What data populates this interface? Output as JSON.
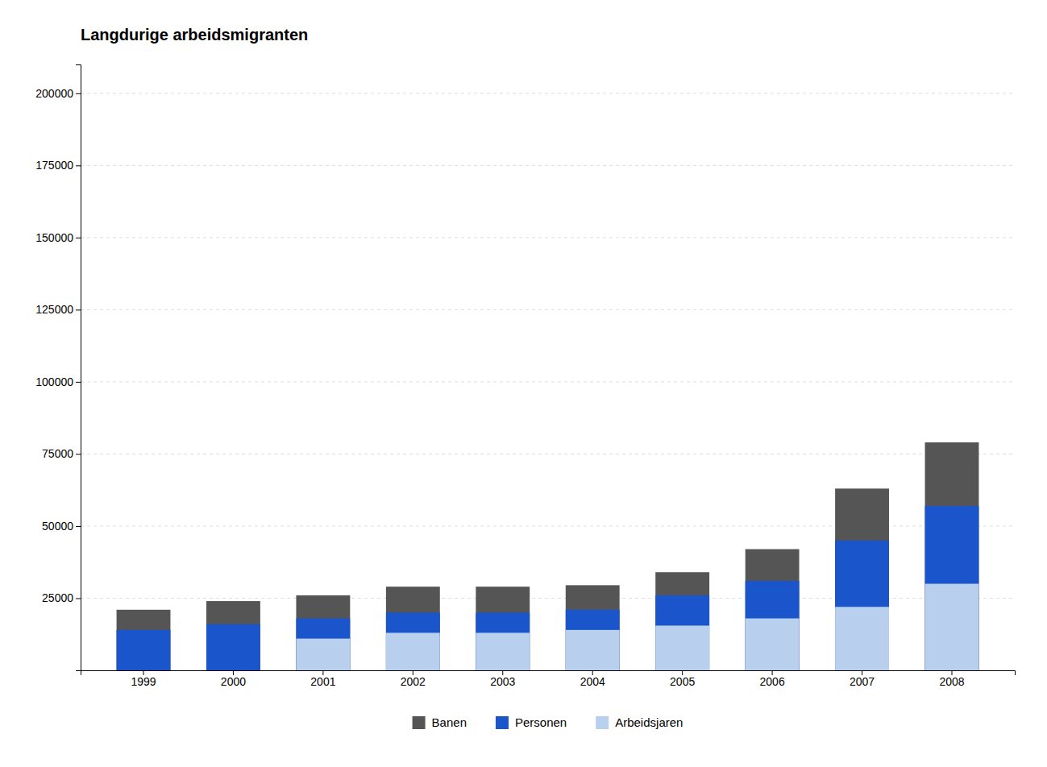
{
  "chart_data": {
    "type": "bar",
    "title": "Langdurige arbeidsmigranten",
    "categories": [
      "1999",
      "2000",
      "2001",
      "2002",
      "2003",
      "2004",
      "2005",
      "2006",
      "2007",
      "2008"
    ],
    "series": [
      {
        "name": "Banen",
        "color": "#555555",
        "values": [
          21000,
          24000,
          26000,
          29000,
          29000,
          29500,
          34000,
          42000,
          63000,
          79000
        ]
      },
      {
        "name": "Personen",
        "color": "#1a55cc",
        "values": [
          14000,
          16000,
          18000,
          20000,
          20000,
          21000,
          26000,
          31000,
          45000,
          57000
        ]
      },
      {
        "name": "Arbeidsjaren",
        "color": "#b8d0ee",
        "values": [
          0,
          0,
          11000,
          13000,
          13000,
          14000,
          15500,
          18000,
          22000,
          30000
        ]
      }
    ],
    "stacked": false,
    "ylim": [
      0,
      210000
    ],
    "yticks": [
      25000,
      50000,
      75000,
      100000,
      125000,
      150000,
      175000,
      200000
    ],
    "grid": true,
    "legend": "bottom"
  }
}
